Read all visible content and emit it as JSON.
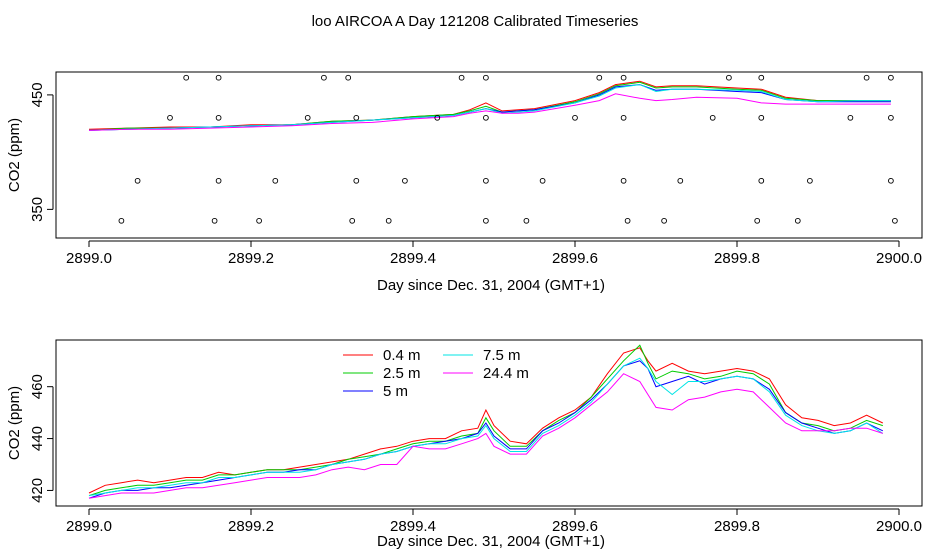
{
  "figure": {
    "title": "loo AIRCOA A  Day 121208  Calibrated Timeseries"
  },
  "chart_data": [
    {
      "type": "line",
      "ylabel": "CO2 (ppm)",
      "xlabel": "Day since Dec. 31, 2004 (GMT+1)",
      "xlim": [
        2899.0,
        2900.0
      ],
      "ylim": [
        325,
        470
      ],
      "xticks": [
        2899.0,
        2899.2,
        2899.4,
        2899.6,
        2899.8,
        2900.0
      ],
      "xtick_labels": [
        "2899.0",
        "2899.2",
        "2899.4",
        "2899.6",
        "2899.8",
        "2900.0"
      ],
      "yticks": [
        350,
        450
      ],
      "ytick_labels": [
        "350",
        "450"
      ],
      "x": [
        2899.0,
        2899.05,
        2899.1,
        2899.15,
        2899.2,
        2899.25,
        2899.3,
        2899.35,
        2899.4,
        2899.45,
        2899.47,
        2899.49,
        2899.51,
        2899.53,
        2899.55,
        2899.6,
        2899.63,
        2899.65,
        2899.68,
        2899.7,
        2899.72,
        2899.75,
        2899.8,
        2899.83,
        2899.86,
        2899.9,
        2899.95,
        2899.99
      ],
      "series": [
        {
          "color": "#ff0000",
          "values": [
            420,
            421,
            422,
            422,
            424,
            424,
            427,
            428,
            431,
            433,
            437,
            443,
            436,
            437,
            438,
            445,
            452,
            459,
            462,
            457,
            458,
            458,
            456,
            455,
            448,
            445,
            445,
            445
          ]
        },
        {
          "color": "#00cc00",
          "values": [
            419,
            421,
            421,
            422,
            423,
            424,
            427,
            428,
            431,
            433,
            436,
            440,
            435,
            436,
            437,
            444,
            451,
            458,
            461,
            456,
            457,
            457,
            455,
            454,
            447,
            445,
            445,
            445
          ]
        },
        {
          "color": "#0000ff",
          "values": [
            419,
            420,
            421,
            422,
            423,
            424,
            426,
            428,
            430,
            432,
            435,
            438,
            435,
            436,
            437,
            443,
            450,
            457,
            459,
            454,
            455,
            455,
            453,
            452,
            446,
            444,
            444,
            444
          ]
        },
        {
          "color": "#00e5e5",
          "values": [
            419,
            420,
            421,
            422,
            423,
            424,
            426,
            428,
            430,
            432,
            435,
            438,
            434,
            435,
            436,
            443,
            449,
            456,
            459,
            453,
            455,
            455,
            454,
            453,
            446,
            444,
            445,
            445
          ]
        },
        {
          "color": "#ff00ff",
          "values": [
            419,
            420,
            420,
            421,
            422,
            423,
            425,
            426,
            429,
            431,
            434,
            436,
            434,
            434,
            435,
            441,
            445,
            451,
            447,
            445,
            446,
            448,
            447,
            443,
            442,
            442,
            442,
            442
          ]
        }
      ],
      "markers": {
        "symbol": "open-circle",
        "color": "#000000",
        "rows": [
          {
            "y": 465,
            "x": [
              2899.12,
              2899.16,
              2899.29,
              2899.32,
              2899.46,
              2899.49,
              2899.63,
              2899.66,
              2899.79,
              2899.83,
              2899.96,
              2899.99
            ]
          },
          {
            "y": 430,
            "x": [
              2899.1,
              2899.16,
              2899.27,
              2899.33,
              2899.43,
              2899.49,
              2899.6,
              2899.66,
              2899.77,
              2899.83,
              2899.94,
              2899.99
            ]
          },
          {
            "y": 375,
            "x": [
              2899.06,
              2899.16,
              2899.23,
              2899.33,
              2899.39,
              2899.49,
              2899.56,
              2899.66,
              2899.73,
              2899.83,
              2899.89,
              2899.99
            ]
          },
          {
            "y": 340,
            "x": [
              2899.04,
              2899.155,
              2899.21,
              2899.325,
              2899.37,
              2899.49,
              2899.54,
              2899.665,
              2899.71,
              2899.825,
              2899.875,
              2899.995
            ]
          }
        ]
      }
    },
    {
      "type": "line",
      "ylabel": "CO2 (ppm)",
      "xlabel": "Day since Dec. 31, 2004 (GMT+1)",
      "xlim": [
        2899.0,
        2900.0
      ],
      "ylim": [
        414,
        478
      ],
      "xticks": [
        2899.0,
        2899.2,
        2899.4,
        2899.6,
        2899.8,
        2900.0
      ],
      "xtick_labels": [
        "2899.0",
        "2899.2",
        "2899.4",
        "2899.6",
        "2899.8",
        "2900.0"
      ],
      "yticks": [
        420,
        440,
        460
      ],
      "ytick_labels": [
        "420",
        "440",
        "460"
      ],
      "legend": {
        "placement": "top-center",
        "columns": 2
      },
      "x": [
        2899.0,
        2899.02,
        2899.04,
        2899.06,
        2899.08,
        2899.1,
        2899.12,
        2899.14,
        2899.16,
        2899.18,
        2899.2,
        2899.22,
        2899.24,
        2899.26,
        2899.28,
        2899.3,
        2899.32,
        2899.34,
        2899.36,
        2899.38,
        2899.4,
        2899.42,
        2899.44,
        2899.46,
        2899.48,
        2899.49,
        2899.5,
        2899.52,
        2899.54,
        2899.56,
        2899.58,
        2899.6,
        2899.62,
        2899.64,
        2899.66,
        2899.68,
        2899.69,
        2899.7,
        2899.72,
        2899.74,
        2899.76,
        2899.78,
        2899.8,
        2899.82,
        2899.84,
        2899.86,
        2899.88,
        2899.9,
        2899.92,
        2899.94,
        2899.96,
        2899.98
      ],
      "series": [
        {
          "name": "0.4 m",
          "color": "#ff0000",
          "values": [
            419,
            422,
            423,
            424,
            423,
            424,
            425,
            425,
            427,
            426,
            427,
            428,
            428,
            429,
            430,
            431,
            432,
            434,
            436,
            437,
            439,
            440,
            440,
            443,
            444,
            451,
            445,
            439,
            438,
            444,
            448,
            451,
            456,
            465,
            473,
            475,
            470,
            466,
            469,
            466,
            465,
            466,
            467,
            466,
            463,
            453,
            448,
            447,
            445,
            446,
            449,
            446
          ]
        },
        {
          "name": "2.5 m",
          "color": "#00cc00",
          "values": [
            418,
            420,
            421,
            422,
            422,
            423,
            424,
            424,
            426,
            426,
            427,
            428,
            428,
            428,
            429,
            430,
            432,
            433,
            434,
            436,
            438,
            439,
            439,
            441,
            442,
            448,
            443,
            437,
            437,
            443,
            447,
            450,
            456,
            463,
            470,
            476,
            469,
            463,
            466,
            465,
            463,
            464,
            466,
            465,
            461,
            450,
            446,
            445,
            443,
            444,
            447,
            445
          ]
        },
        {
          "name": "5 m",
          "color": "#0000ff",
          "values": [
            417,
            419,
            420,
            420,
            421,
            421,
            422,
            423,
            424,
            425,
            426,
            427,
            427,
            428,
            428,
            430,
            431,
            432,
            434,
            435,
            437,
            438,
            439,
            440,
            442,
            446,
            441,
            436,
            436,
            443,
            446,
            450,
            455,
            461,
            468,
            470,
            467,
            460,
            462,
            464,
            461,
            463,
            464,
            463,
            459,
            450,
            446,
            444,
            442,
            443,
            446,
            443
          ]
        },
        {
          "name": "7.5 m",
          "color": "#00e5e5",
          "values": [
            418,
            419,
            420,
            421,
            421,
            422,
            423,
            423,
            425,
            425,
            426,
            427,
            427,
            427,
            428,
            430,
            431,
            432,
            434,
            435,
            437,
            438,
            438,
            440,
            441,
            445,
            440,
            435,
            435,
            442,
            445,
            449,
            454,
            461,
            468,
            471,
            467,
            462,
            457,
            462,
            462,
            463,
            464,
            463,
            458,
            449,
            445,
            443,
            442,
            443,
            446,
            442
          ]
        },
        {
          "name": "24.4 m",
          "color": "#ff00ff",
          "values": [
            417,
            418,
            419,
            419,
            419,
            420,
            421,
            421,
            422,
            423,
            424,
            425,
            425,
            425,
            426,
            428,
            429,
            428,
            430,
            430,
            437,
            436,
            436,
            438,
            440,
            442,
            437,
            434,
            434,
            441,
            444,
            448,
            453,
            458,
            465,
            462,
            457,
            452,
            451,
            455,
            456,
            458,
            459,
            458,
            452,
            446,
            443,
            443,
            443,
            444,
            444,
            442
          ]
        }
      ]
    }
  ]
}
